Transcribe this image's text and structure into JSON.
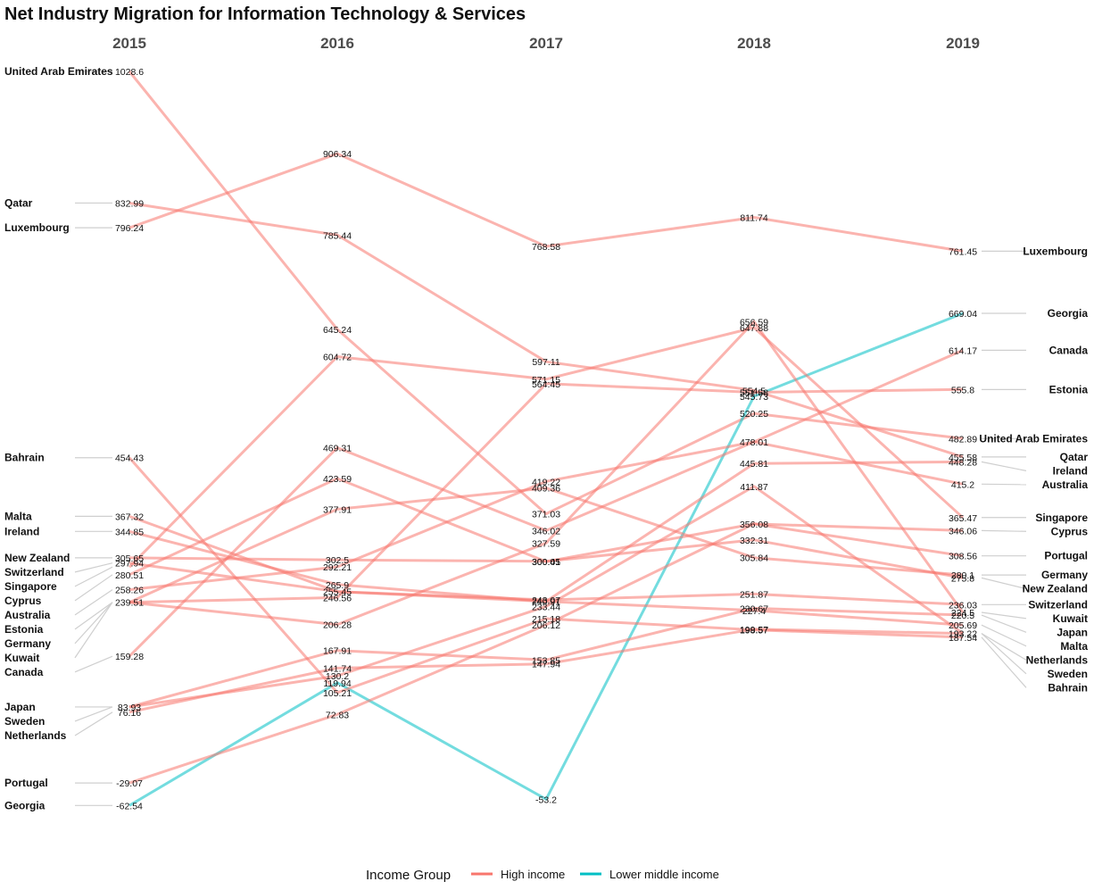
{
  "chart_data": {
    "type": "line",
    "title": "Net Industry Migration for Information Technology & Services",
    "x": [
      "2015",
      "2016",
      "2017",
      "2018",
      "2019"
    ],
    "colors": {
      "High income": "#F8766D",
      "Lower middle income": "#00BFC4"
    },
    "legend": {
      "title": "Income Group",
      "position": "bottom",
      "items": [
        "High income",
        "Lower middle income"
      ]
    },
    "series": [
      {
        "name": "United Arab Emirates",
        "group": "High income",
        "values": [
          1028.6,
          645.24,
          371.03,
          520.25,
          482.89
        ]
      },
      {
        "name": "Qatar",
        "group": "High income",
        "values": [
          832.99,
          785.44,
          597.11,
          554.5,
          455.58
        ]
      },
      {
        "name": "Luxembourg",
        "group": "High income",
        "values": [
          796.24,
          906.34,
          768.58,
          811.74,
          761.45
        ]
      },
      {
        "name": "Georgia",
        "group": "Lower middle income",
        "values": [
          -62.54,
          119.94,
          -53.2,
          545.73,
          669.04
        ]
      },
      {
        "name": "Canada",
        "group": "High income",
        "values": [
          159.28,
          469.31,
          346.02,
          478.01,
          614.17
        ]
      },
      {
        "name": "Estonia",
        "group": "High income",
        "values": [
          239.51,
          246.56,
          564.45,
          551.58,
          555.8
        ]
      },
      {
        "name": "Ireland",
        "group": "High income",
        "values": [
          344.85,
          265.9,
          240.91,
          445.81,
          448.28
        ]
      },
      {
        "name": "Australia",
        "group": "High income",
        "values": [
          258.26,
          292.21,
          419.22,
          478.01,
          415.2
        ]
      },
      {
        "name": "Singapore",
        "group": "High income",
        "values": [
          291.94,
          604.72,
          571.15,
          647.88,
          365.47
        ]
      },
      {
        "name": "Cyprus",
        "group": "High income",
        "values": [
          280.51,
          423.59,
          300.05,
          356.08,
          346.06
        ]
      },
      {
        "name": "Portugal",
        "group": "High income",
        "values": [
          -29.07,
          72.83,
          206.12,
          356.08,
          308.56
        ]
      },
      {
        "name": "Germany",
        "group": "High income",
        "values": [
          239.51,
          377.91,
          409.36,
          305.84,
          280.1
        ]
      },
      {
        "name": "New Zealand",
        "group": "High income",
        "values": [
          305.65,
          302.5,
          300.41,
          332.31,
          275.8
        ]
      },
      {
        "name": "Switzerland",
        "group": "High income",
        "values": [
          297.94,
          255.45,
          243.07,
          251.87,
          236.03
        ]
      },
      {
        "name": "Kuwait",
        "group": "High income",
        "values": [
          239.51,
          206.28,
          327.59,
          656.59,
          224.5
        ]
      },
      {
        "name": "Japan",
        "group": "High income",
        "values": [
          83.93,
          167.91,
          153.85,
          230.67,
          220.5
        ]
      },
      {
        "name": "Malta",
        "group": "High income",
        "values": [
          367.32,
          255.45,
          240.91,
          227.4,
          205.69
        ]
      },
      {
        "name": "Netherlands",
        "group": "High income",
        "values": [
          76.16,
          141.74,
          147.94,
          199.57,
          193.22
        ]
      },
      {
        "name": "Sweden",
        "group": "High income",
        "values": [
          83.93,
          130.2,
          233.44,
          411.87,
          193.22
        ]
      },
      {
        "name": "Bahrain",
        "group": "High income",
        "values": [
          454.43,
          105.21,
          215.18,
          198.57,
          187.54
        ]
      }
    ],
    "value_labels": {
      "2015": [
        1028.6,
        832.99,
        796.24,
        454.43,
        367.32,
        344.85,
        305.65,
        297.94,
        280.51,
        258.26,
        239.51,
        159.28,
        83.93,
        76.16,
        -29.07,
        -62.54
      ],
      "2016": [
        906.34,
        785.44,
        645.24,
        604.72,
        469.31,
        423.59,
        377.91,
        302.5,
        292.21,
        265.9,
        255.45,
        246.56,
        206.28,
        167.91,
        141.74,
        130.2,
        119.94,
        105.21,
        72.83
      ],
      "2017": [
        768.58,
        597.11,
        571.15,
        564.45,
        419.22,
        409.36,
        371.03,
        346.02,
        327.59,
        300.41,
        300.05,
        240.91,
        243.07,
        233.44,
        215.18,
        206.12,
        153.85,
        147.94,
        -53.2
      ],
      "2018": [
        811.74,
        656.59,
        647.88,
        554.5,
        551.58,
        545.73,
        520.25,
        478.01,
        445.81,
        411.87,
        356.08,
        332.31,
        305.84,
        251.87,
        230.67,
        227.4,
        199.57,
        198.57
      ],
      "2019": [
        761.45,
        669.04,
        614.17,
        555.8,
        482.89,
        455.58,
        448.28,
        415.2,
        365.47,
        346.06,
        308.56,
        280.1,
        275.8,
        236.03,
        224.5,
        220.5,
        205.69,
        193.22,
        187.54
      ]
    },
    "left_labels": [
      "United Arab Emirates",
      "Qatar",
      "Luxembourg",
      "Bahrain",
      "Malta",
      "Ireland",
      "New Zealand",
      "Switzerland",
      "Singapore",
      "Cyprus",
      "Australia",
      "Estonia",
      "Germany",
      "Kuwait",
      "Canada",
      "Japan",
      "Sweden",
      "Netherlands",
      "Portugal",
      "Georgia"
    ],
    "right_labels": [
      "Luxembourg",
      "Georgia",
      "Canada",
      "Estonia",
      "United Arab Emirates",
      "Qatar",
      "Ireland",
      "Australia",
      "Singapore",
      "Cyprus",
      "Portugal",
      "Germany",
      "New Zealand",
      "Switzerland",
      "Kuwait",
      "Japan",
      "Malta",
      "Netherlands",
      "Sweden",
      "Bahrain"
    ],
    "grid": false
  }
}
